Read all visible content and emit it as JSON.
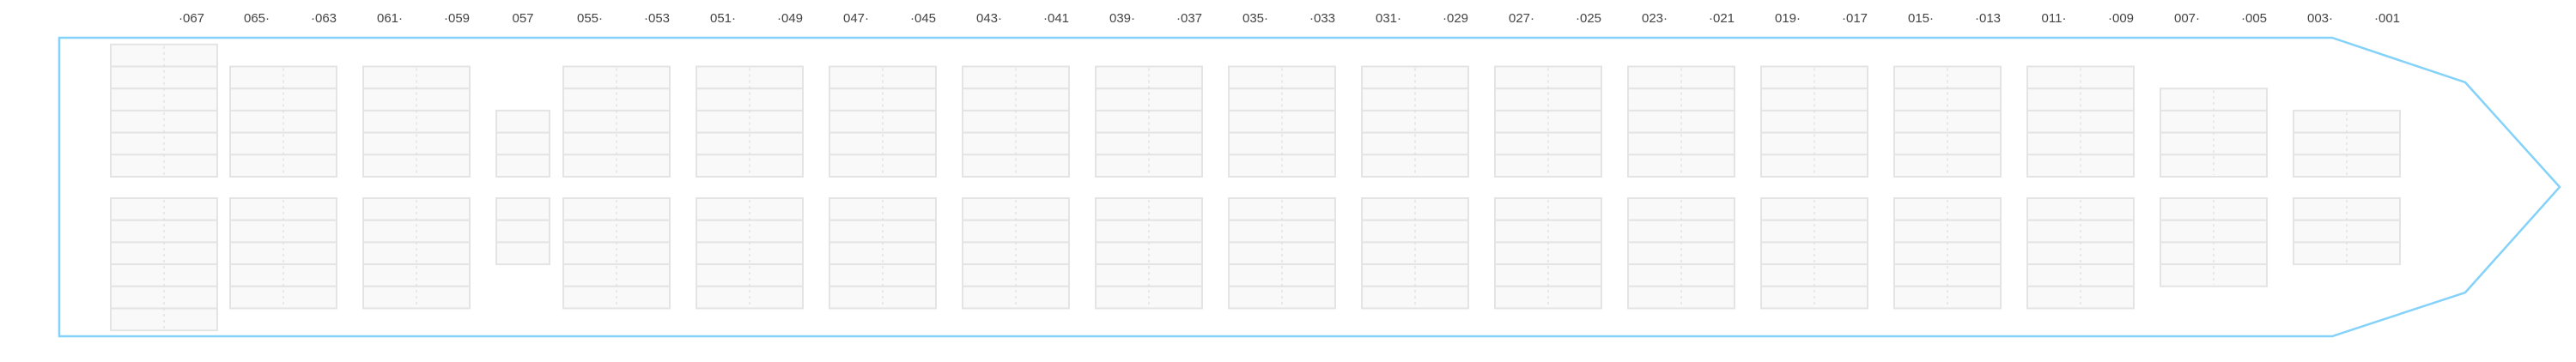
{
  "colors": {
    "hull": "#84d2fa",
    "cell_fill": "#f9f9f9",
    "cell_border": "#e4e4e4",
    "divider": "#dddddd",
    "label": "#444444"
  },
  "bays": [
    {
      "labels": [
        "·067"
      ],
      "width": "double",
      "deck_tiers": 6,
      "hold_tiers": 6
    },
    {
      "labels": [
        "065·",
        "·063"
      ],
      "width": "double",
      "deck_tiers": 5,
      "hold_tiers": 5
    },
    {
      "labels": [
        "061·",
        "·059"
      ],
      "width": "double",
      "deck_tiers": 5,
      "hold_tiers": 5
    },
    {
      "labels": [
        "057"
      ],
      "width": "single",
      "deck_tiers": 3,
      "hold_tiers": 3
    },
    {
      "labels": [
        "055·",
        "·053"
      ],
      "width": "double",
      "deck_tiers": 5,
      "hold_tiers": 5
    },
    {
      "labels": [
        "051·",
        "·049"
      ],
      "width": "double",
      "deck_tiers": 5,
      "hold_tiers": 5
    },
    {
      "labels": [
        "047·",
        "·045"
      ],
      "width": "double",
      "deck_tiers": 5,
      "hold_tiers": 5
    },
    {
      "labels": [
        "043·",
        "·041"
      ],
      "width": "double",
      "deck_tiers": 5,
      "hold_tiers": 5
    },
    {
      "labels": [
        "039·",
        "·037"
      ],
      "width": "double",
      "deck_tiers": 5,
      "hold_tiers": 5
    },
    {
      "labels": [
        "035·",
        "·033"
      ],
      "width": "double",
      "deck_tiers": 5,
      "hold_tiers": 5
    },
    {
      "labels": [
        "031·",
        "·029"
      ],
      "width": "double",
      "deck_tiers": 5,
      "hold_tiers": 5
    },
    {
      "labels": [
        "027·",
        "·025"
      ],
      "width": "double",
      "deck_tiers": 5,
      "hold_tiers": 5
    },
    {
      "labels": [
        "023·",
        "·021"
      ],
      "width": "double",
      "deck_tiers": 5,
      "hold_tiers": 5
    },
    {
      "labels": [
        "019·",
        "·017"
      ],
      "width": "double",
      "deck_tiers": 5,
      "hold_tiers": 5
    },
    {
      "labels": [
        "015·",
        "·013"
      ],
      "width": "double",
      "deck_tiers": 5,
      "hold_tiers": 5
    },
    {
      "labels": [
        "011·",
        "·009"
      ],
      "width": "double",
      "deck_tiers": 5,
      "hold_tiers": 5
    },
    {
      "labels": [
        "007·",
        "·005"
      ],
      "width": "double",
      "deck_tiers": 4,
      "hold_tiers": 4
    },
    {
      "labels": [
        "003·",
        "·001"
      ],
      "width": "double",
      "deck_tiers": 3,
      "hold_tiers": 3
    }
  ]
}
